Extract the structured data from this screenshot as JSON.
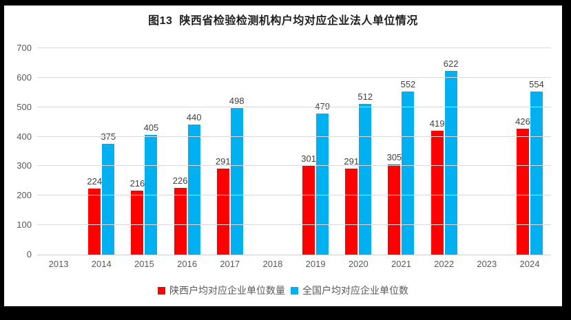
{
  "title": "图13  陕西省检验检测机构户均对应企业法人单位情况",
  "colors": {
    "shaanxi_red": "#ff0000",
    "national_blue": "#00b0f0",
    "gridline": "#d9d9d9",
    "axis_text": "#595959",
    "data_label_text": "#3f3f3f",
    "frame": "#000000"
  },
  "chart_data": {
    "type": "bar",
    "title": "图13  陕西省检验检测机构户均对应企业法人单位情况",
    "categories": [
      "2013",
      "2014",
      "2015",
      "2016",
      "2017",
      "2018",
      "2019",
      "2020",
      "2021",
      "2022",
      "2023",
      "2024"
    ],
    "series": [
      {
        "key": "shaanxi",
        "name": "陕西户均对应企业单位数量",
        "color": "#ff0000",
        "values": [
          null,
          224,
          216,
          226,
          291,
          null,
          301,
          291,
          305,
          419,
          null,
          426
        ]
      },
      {
        "key": "national",
        "name": "全国户均对应企业单位数",
        "color": "#00b0f0",
        "values": [
          null,
          375,
          405,
          440,
          498,
          null,
          479,
          512,
          552,
          622,
          null,
          554
        ]
      }
    ],
    "xlabel": "",
    "ylabel": "",
    "ylim": [
      0,
      700
    ],
    "ytick_step": 100,
    "grid": true,
    "legend_position": "bottom",
    "data_labels": true
  }
}
